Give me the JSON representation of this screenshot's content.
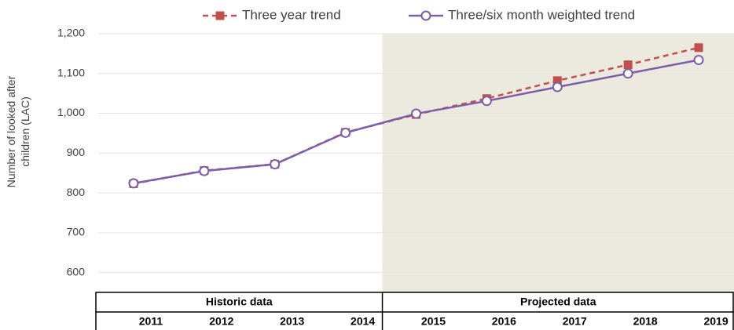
{
  "chart_data": {
    "type": "line",
    "y_label": "Number of looked after children (LAC)",
    "categories": [
      "2011",
      "2012",
      "2013",
      "2014",
      "2015",
      "2016",
      "2017",
      "2018",
      "2019"
    ],
    "series": [
      {
        "name": "Three year trend",
        "color": "#c0504d",
        "dashed": true,
        "marker": "square",
        "values": [
          823,
          856,
          872,
          952,
          997,
          1037,
          1082,
          1122,
          1165
        ]
      },
      {
        "name": "Three/six month weighted trend",
        "color": "#7b5ea7",
        "dashed": false,
        "marker": "circle",
        "values": [
          824,
          855,
          872,
          951,
          999,
          1031,
          1066,
          1100,
          1134
        ]
      }
    ],
    "ylim": [
      550,
      1200
    ],
    "yticks": [
      600,
      700,
      800,
      900,
      {
        "value": 1000,
        "label": "1,000"
      },
      {
        "value": 1100,
        "label": "1,100"
      },
      {
        "value": 1200,
        "label": "1,200"
      }
    ],
    "grid": true,
    "sections": [
      {
        "label": "Historic data",
        "from": "2011",
        "to": "2014",
        "shaded": false
      },
      {
        "label": "Projected data",
        "from": "2015",
        "to": "2019",
        "shaded": true
      }
    ]
  }
}
